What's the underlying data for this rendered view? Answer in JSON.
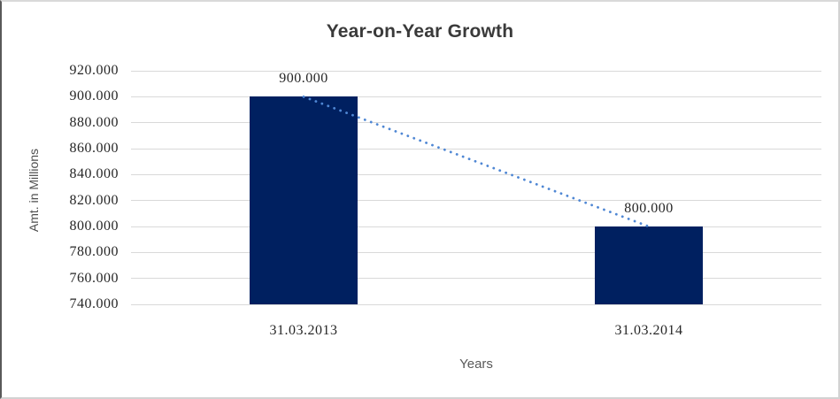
{
  "chart_data": {
    "type": "bar",
    "title": "Year-on-Year Growth",
    "xlabel": "Years",
    "ylabel": "Amt. in Millions",
    "categories": [
      "31.03.2013",
      "31.03.2014"
    ],
    "series": [
      {
        "values": [
          900,
          800
        ],
        "value_labels": [
          "900.000",
          "800.000"
        ]
      }
    ],
    "ylim": [
      740,
      920
    ],
    "ytick_step": 20,
    "ytick_labels": [
      "920.000",
      "900.000",
      "880.000",
      "860.000",
      "840.000",
      "820.000",
      "800.000",
      "780.000",
      "760.000",
      "740.000"
    ],
    "grid": "horizontal",
    "legend": "none",
    "trendline": {
      "style": "dotted",
      "connects": "bar-tops"
    },
    "colors": {
      "bar": "#002060",
      "trendline": "#4f87d4",
      "gridline": "#d9d9d9",
      "title_text": "#3a3a3a",
      "tick_text": "#262626",
      "axis_title_text": "#595959"
    }
  }
}
